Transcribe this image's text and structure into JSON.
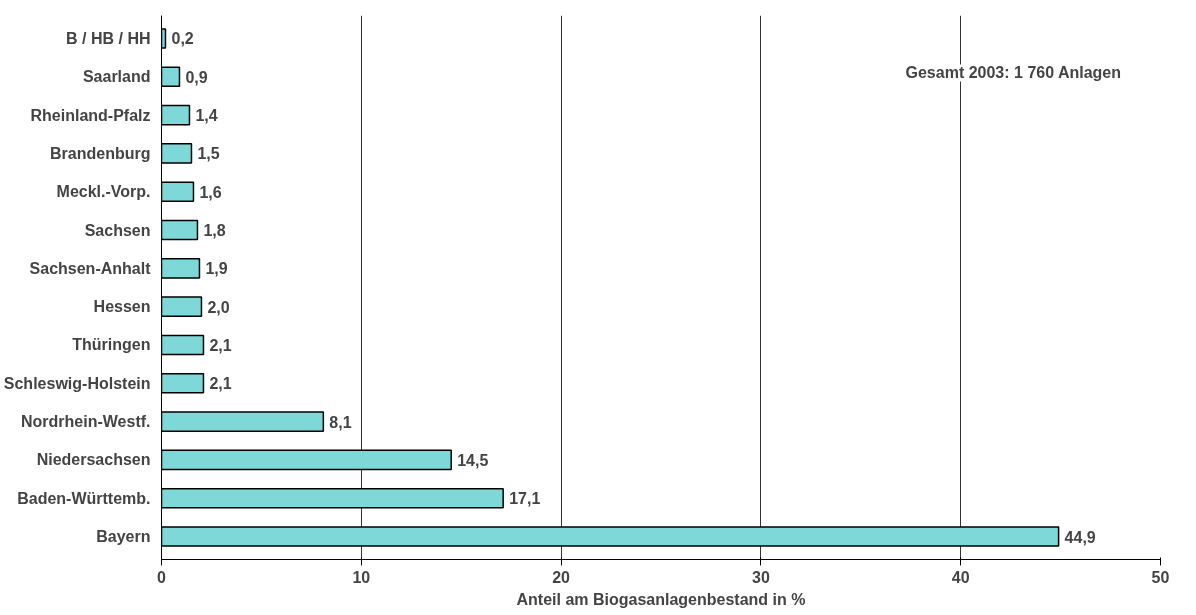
{
  "chart_data": {
    "type": "bar",
    "orientation": "horizontal",
    "xlabel": "Anteil am Biogasanlagenbestand in %",
    "categories": [
      "B / HB / HH",
      "Saarland",
      "Rheinland-Pfalz",
      "Brandenburg",
      "Meckl.-Vorp.",
      "Sachsen",
      "Sachsen-Anhalt",
      "Hessen",
      "Thüringen",
      "Schleswig-Holstein",
      "Nordrhein-Westf.",
      "Niedersachsen",
      "Baden-Württemb.",
      "Bayern"
    ],
    "values": [
      0.2,
      0.9,
      1.4,
      1.5,
      1.6,
      1.8,
      1.9,
      2.0,
      2.1,
      2.1,
      8.1,
      14.5,
      17.1,
      44.9
    ],
    "value_labels": [
      "0,2",
      "0,9",
      "1,4",
      "1,5",
      "1,6",
      "1,8",
      "1,9",
      "2,0",
      "2,1",
      "2,1",
      "8,1",
      "14,5",
      "17,1",
      "44,9"
    ],
    "color": "#7fd8d8",
    "xlim": [
      0,
      50
    ],
    "xticks": [
      0,
      10,
      20,
      30,
      40,
      50
    ],
    "grid": "x",
    "annotations": [
      "Gesamt 2003:   1 760 Anlagen"
    ]
  }
}
